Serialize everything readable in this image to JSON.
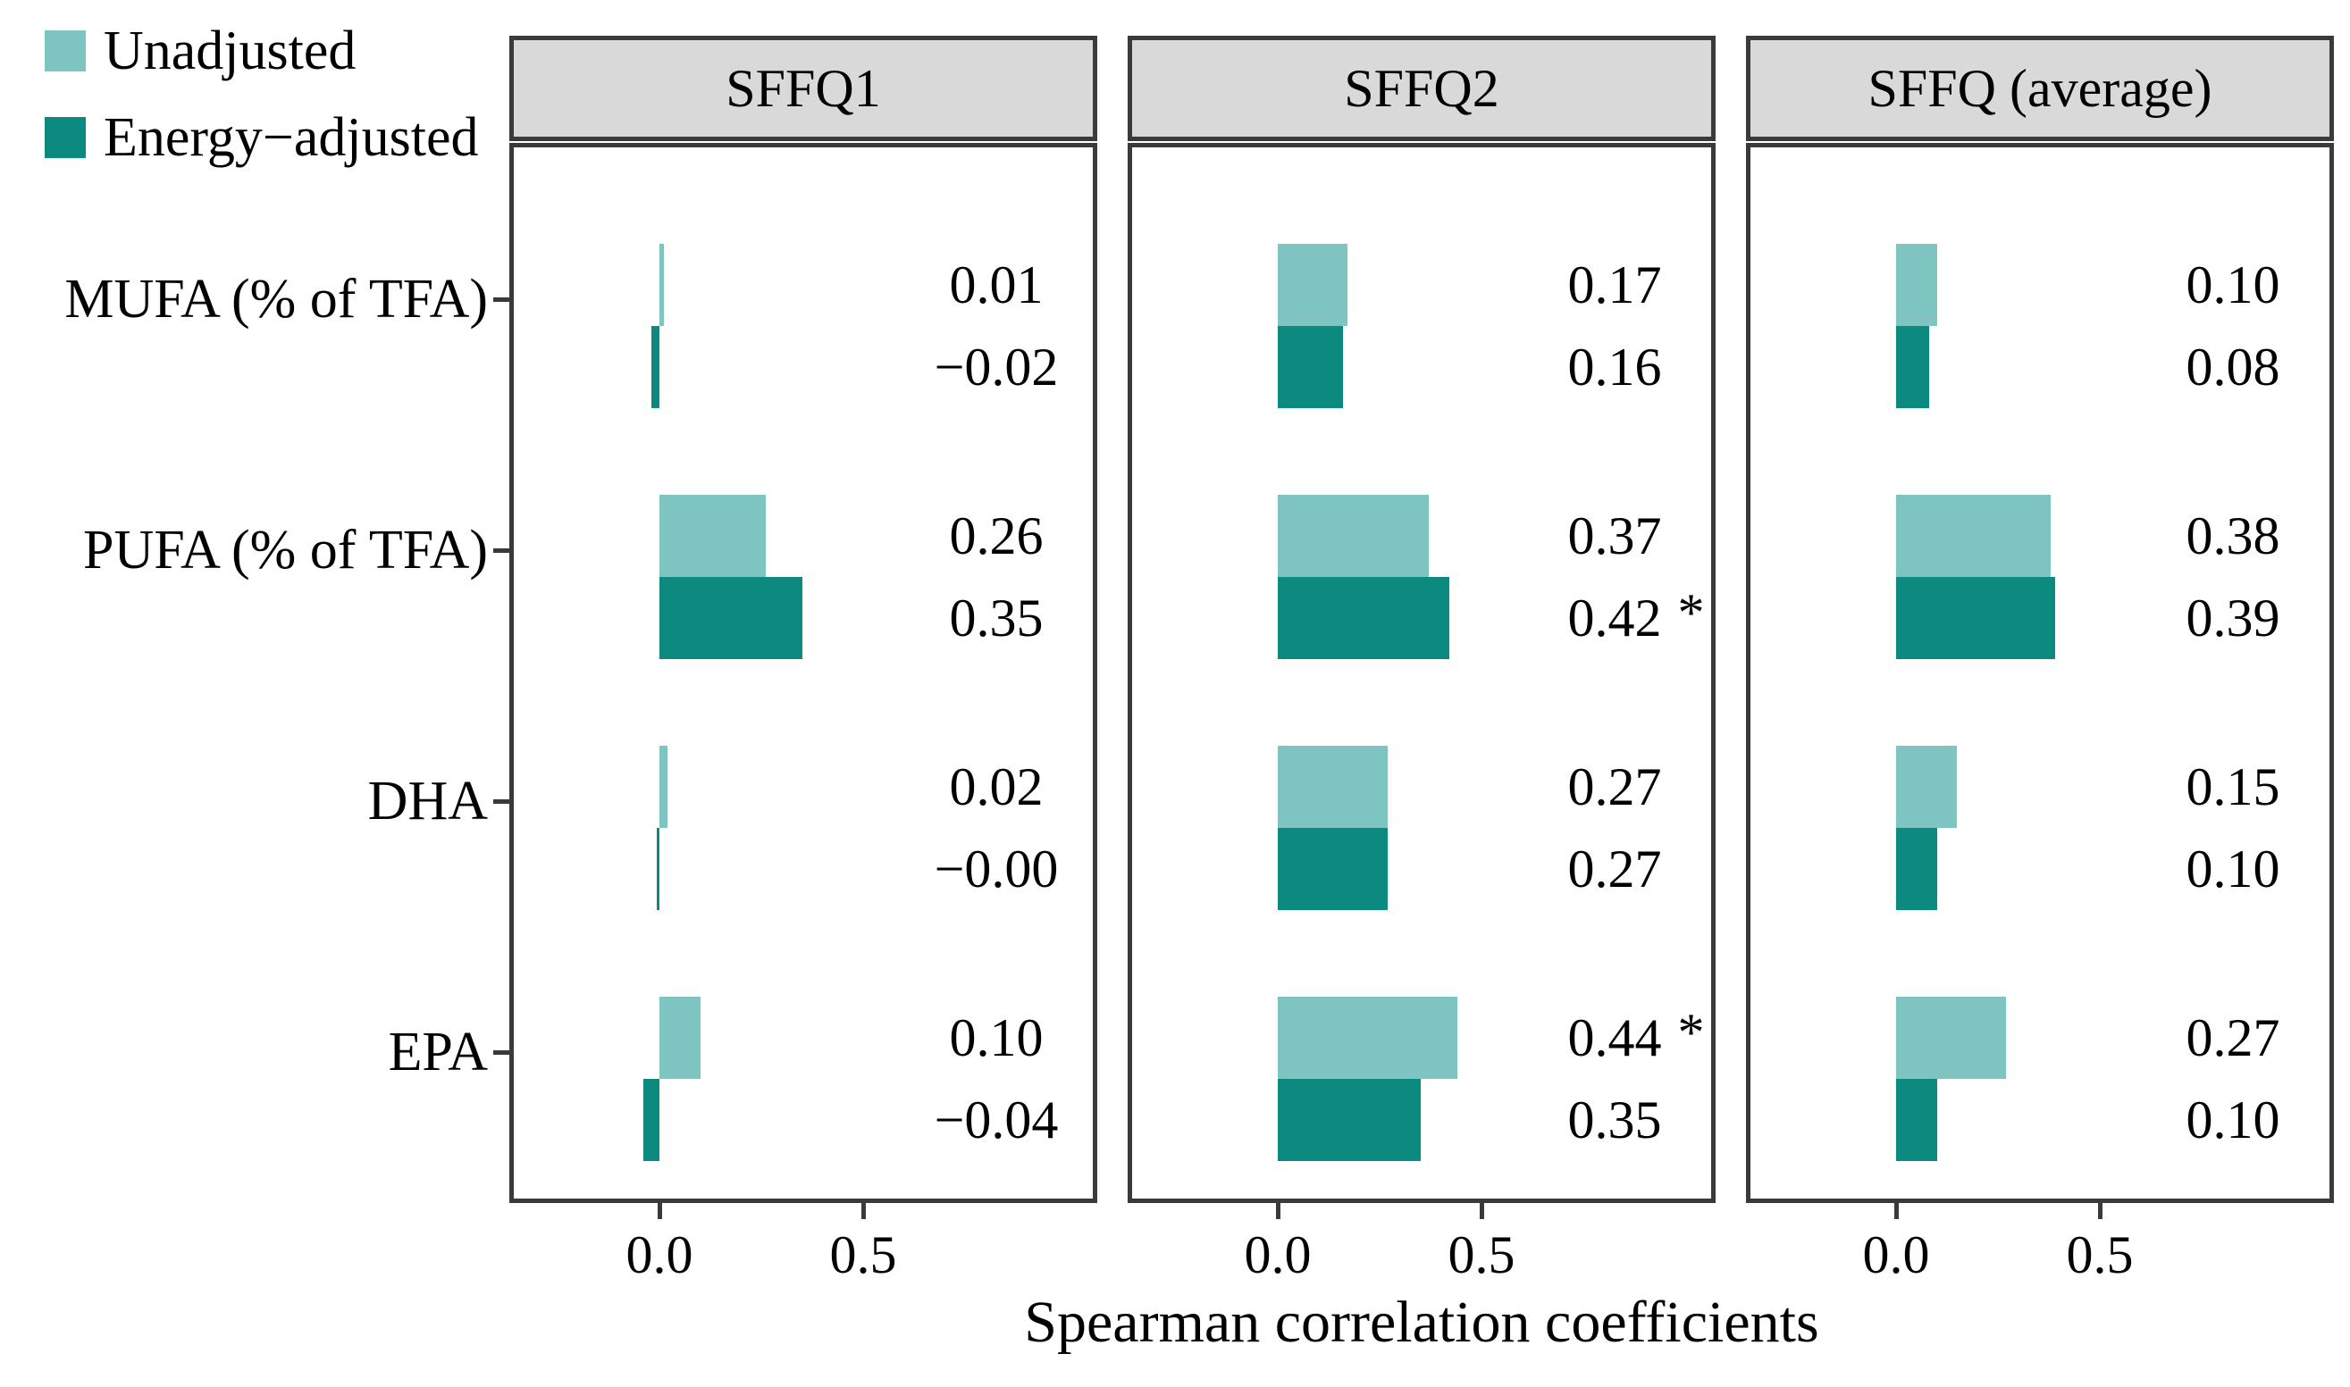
{
  "legend": {
    "items": [
      {
        "label": "Unadjusted",
        "series": "unadjusted",
        "color": "#7ec5c2"
      },
      {
        "label": "Energy−adjusted",
        "series": "energy_adjusted",
        "color": "#0d8a80"
      }
    ]
  },
  "x_axis": {
    "label": "Spearman correlation coefficients",
    "tick_labels": [
      "0.0",
      "0.5"
    ],
    "tick_values": [
      0,
      0.5
    ]
  },
  "y_axis": {
    "categories": [
      "MUFA (% of TFA)",
      "PUFA (% of TFA)",
      "DHA",
      "EPA"
    ]
  },
  "colors": {
    "unadjusted": "#7ec5c2",
    "energy_adjusted": "#0d8a80",
    "panel_border": "#3a3a3a",
    "strip_background": "#d9d9d9"
  },
  "chart_data": {
    "type": "bar",
    "orientation": "horizontal",
    "title": "",
    "xlabel": "Spearman correlation coefficients",
    "ylabel": "",
    "xlim": [
      -0.38,
      1.06
    ],
    "x_ticks": [
      0,
      0.5
    ],
    "grid": false,
    "legend_position": "top-left",
    "series": [
      "Unadjusted",
      "Energy−adjusted"
    ],
    "categories": [
      "MUFA (% of TFA)",
      "PUFA (% of TFA)",
      "DHA",
      "EPA"
    ],
    "facets": [
      {
        "title": "SFFQ1",
        "rows": [
          {
            "category": "MUFA (% of TFA)",
            "unadjusted": 0.01,
            "unadjusted_label": "0.01",
            "unadjusted_sig": "",
            "energy_adjusted": -0.02,
            "energy_adjusted_label": "−0.02",
            "energy_adjusted_sig": ""
          },
          {
            "category": "PUFA (% of TFA)",
            "unadjusted": 0.26,
            "unadjusted_label": "0.26",
            "unadjusted_sig": "",
            "energy_adjusted": 0.35,
            "energy_adjusted_label": "0.35",
            "energy_adjusted_sig": ""
          },
          {
            "category": "DHA",
            "unadjusted": 0.02,
            "unadjusted_label": "0.02",
            "unadjusted_sig": "",
            "energy_adjusted": -0.001,
            "energy_adjusted_label": "−0.00",
            "energy_adjusted_sig": ""
          },
          {
            "category": "EPA",
            "unadjusted": 0.1,
            "unadjusted_label": "0.10",
            "unadjusted_sig": "",
            "energy_adjusted": -0.04,
            "energy_adjusted_label": "−0.04",
            "energy_adjusted_sig": ""
          }
        ]
      },
      {
        "title": "SFFQ2",
        "rows": [
          {
            "category": "MUFA (% of TFA)",
            "unadjusted": 0.17,
            "unadjusted_label": "0.17",
            "unadjusted_sig": "",
            "energy_adjusted": 0.16,
            "energy_adjusted_label": "0.16",
            "energy_adjusted_sig": ""
          },
          {
            "category": "PUFA (% of TFA)",
            "unadjusted": 0.37,
            "unadjusted_label": "0.37",
            "unadjusted_sig": "",
            "energy_adjusted": 0.42,
            "energy_adjusted_label": "0.42",
            "energy_adjusted_sig": "*"
          },
          {
            "category": "DHA",
            "unadjusted": 0.27,
            "unadjusted_label": "0.27",
            "unadjusted_sig": "",
            "energy_adjusted": 0.27,
            "energy_adjusted_label": "0.27",
            "energy_adjusted_sig": ""
          },
          {
            "category": "EPA",
            "unadjusted": 0.44,
            "unadjusted_label": "0.44",
            "unadjusted_sig": "*",
            "energy_adjusted": 0.35,
            "energy_adjusted_label": "0.35",
            "energy_adjusted_sig": ""
          }
        ]
      },
      {
        "title": "SFFQ (average)",
        "rows": [
          {
            "category": "MUFA (% of TFA)",
            "unadjusted": 0.1,
            "unadjusted_label": "0.10",
            "unadjusted_sig": "",
            "energy_adjusted": 0.08,
            "energy_adjusted_label": "0.08",
            "energy_adjusted_sig": ""
          },
          {
            "category": "PUFA (% of TFA)",
            "unadjusted": 0.38,
            "unadjusted_label": "0.38",
            "unadjusted_sig": "",
            "energy_adjusted": 0.39,
            "energy_adjusted_label": "0.39",
            "energy_adjusted_sig": ""
          },
          {
            "category": "DHA",
            "unadjusted": 0.15,
            "unadjusted_label": "0.15",
            "unadjusted_sig": "",
            "energy_adjusted": 0.1,
            "energy_adjusted_label": "0.10",
            "energy_adjusted_sig": ""
          },
          {
            "category": "EPA",
            "unadjusted": 0.27,
            "unadjusted_label": "0.27",
            "unadjusted_sig": "",
            "energy_adjusted": 0.1,
            "energy_adjusted_label": "0.10",
            "energy_adjusted_sig": ""
          }
        ]
      }
    ]
  }
}
